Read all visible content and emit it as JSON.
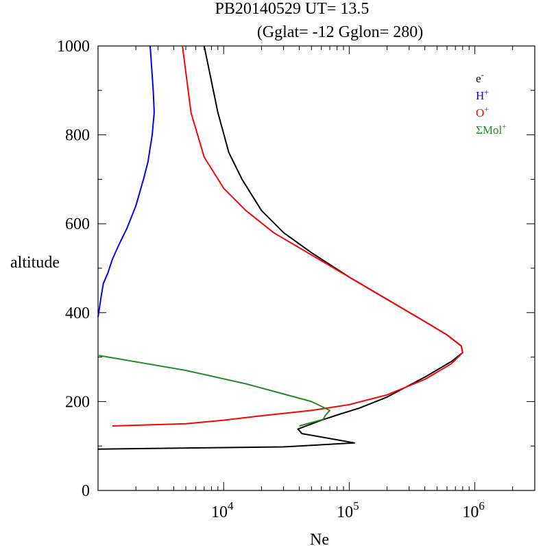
{
  "chart_data": {
    "type": "line",
    "title_line1": "PB20140529   UT=  13.5",
    "title_line2": "(Gglat= -12   Gglon=  280)",
    "xlabel": "Ne",
    "ylabel": "altitude",
    "x_scale": "log",
    "xlim": [
      1000,
      3000000
    ],
    "ylim": [
      0,
      1000
    ],
    "x_ticks": [
      {
        "value": 10000,
        "base": "10",
        "exp": "4"
      },
      {
        "value": 100000,
        "base": "10",
        "exp": "5"
      },
      {
        "value": 1000000,
        "base": "10",
        "exp": "6"
      }
    ],
    "y_ticks": [
      {
        "value": 0,
        "label": "0"
      },
      {
        "value": 200,
        "label": "200"
      },
      {
        "value": 400,
        "label": "400"
      },
      {
        "value": 600,
        "label": "600"
      },
      {
        "value": 800,
        "label": "800"
      },
      {
        "value": 1000,
        "label": "1000"
      }
    ],
    "legend_position": "top-right",
    "series": [
      {
        "name": "e",
        "sup": "-",
        "color": "#000000",
        "points": [
          [
            1000,
            93
          ],
          [
            30000,
            98
          ],
          [
            40000,
            100
          ],
          [
            110000,
            107
          ],
          [
            42000,
            128
          ],
          [
            39000,
            138
          ],
          [
            60000,
            158
          ],
          [
            85000,
            172
          ],
          [
            120000,
            185
          ],
          [
            200000,
            210
          ],
          [
            400000,
            255
          ],
          [
            650000,
            290
          ],
          [
            800000,
            310
          ],
          [
            780000,
            325
          ],
          [
            600000,
            350
          ],
          [
            400000,
            380
          ],
          [
            200000,
            430
          ],
          [
            100000,
            480
          ],
          [
            50000,
            535
          ],
          [
            30000,
            580
          ],
          [
            20000,
            630
          ],
          [
            14000,
            700
          ],
          [
            11000,
            760
          ],
          [
            9000,
            850
          ],
          [
            7000,
            1000
          ]
        ]
      },
      {
        "name": "H",
        "sup": "+",
        "color": "#0000ff",
        "points": [
          [
            1000,
            390
          ],
          [
            1050,
            430
          ],
          [
            1100,
            465
          ],
          [
            1200,
            490
          ],
          [
            1300,
            520
          ],
          [
            1450,
            550
          ],
          [
            1700,
            590
          ],
          [
            2000,
            640
          ],
          [
            2300,
            700
          ],
          [
            2500,
            740
          ],
          [
            2700,
            800
          ],
          [
            2800,
            850
          ],
          [
            2750,
            900
          ],
          [
            2600,
            1000
          ]
        ]
      },
      {
        "name": "O",
        "sup": "+",
        "color": "#ff0000",
        "points": [
          [
            1300,
            145
          ],
          [
            5000,
            150
          ],
          [
            10000,
            158
          ],
          [
            20000,
            168
          ],
          [
            50000,
            180
          ],
          [
            100000,
            193
          ],
          [
            200000,
            215
          ],
          [
            400000,
            250
          ],
          [
            650000,
            285
          ],
          [
            800000,
            310
          ],
          [
            780000,
            325
          ],
          [
            600000,
            350
          ],
          [
            400000,
            380
          ],
          [
            200000,
            430
          ],
          [
            100000,
            480
          ],
          [
            50000,
            530
          ],
          [
            25000,
            580
          ],
          [
            15000,
            630
          ],
          [
            10000,
            680
          ],
          [
            7000,
            750
          ],
          [
            5500,
            850
          ],
          [
            4700,
            1000
          ]
        ]
      },
      {
        "name": "ΣMol",
        "sup": "+",
        "color": "#228b22",
        "points": [
          [
            1000,
            304
          ],
          [
            5000,
            270
          ],
          [
            15000,
            240
          ],
          [
            50000,
            200
          ],
          [
            70000,
            180
          ],
          [
            65000,
            170
          ],
          [
            62000,
            160
          ],
          [
            40000,
            145
          ]
        ]
      }
    ]
  }
}
